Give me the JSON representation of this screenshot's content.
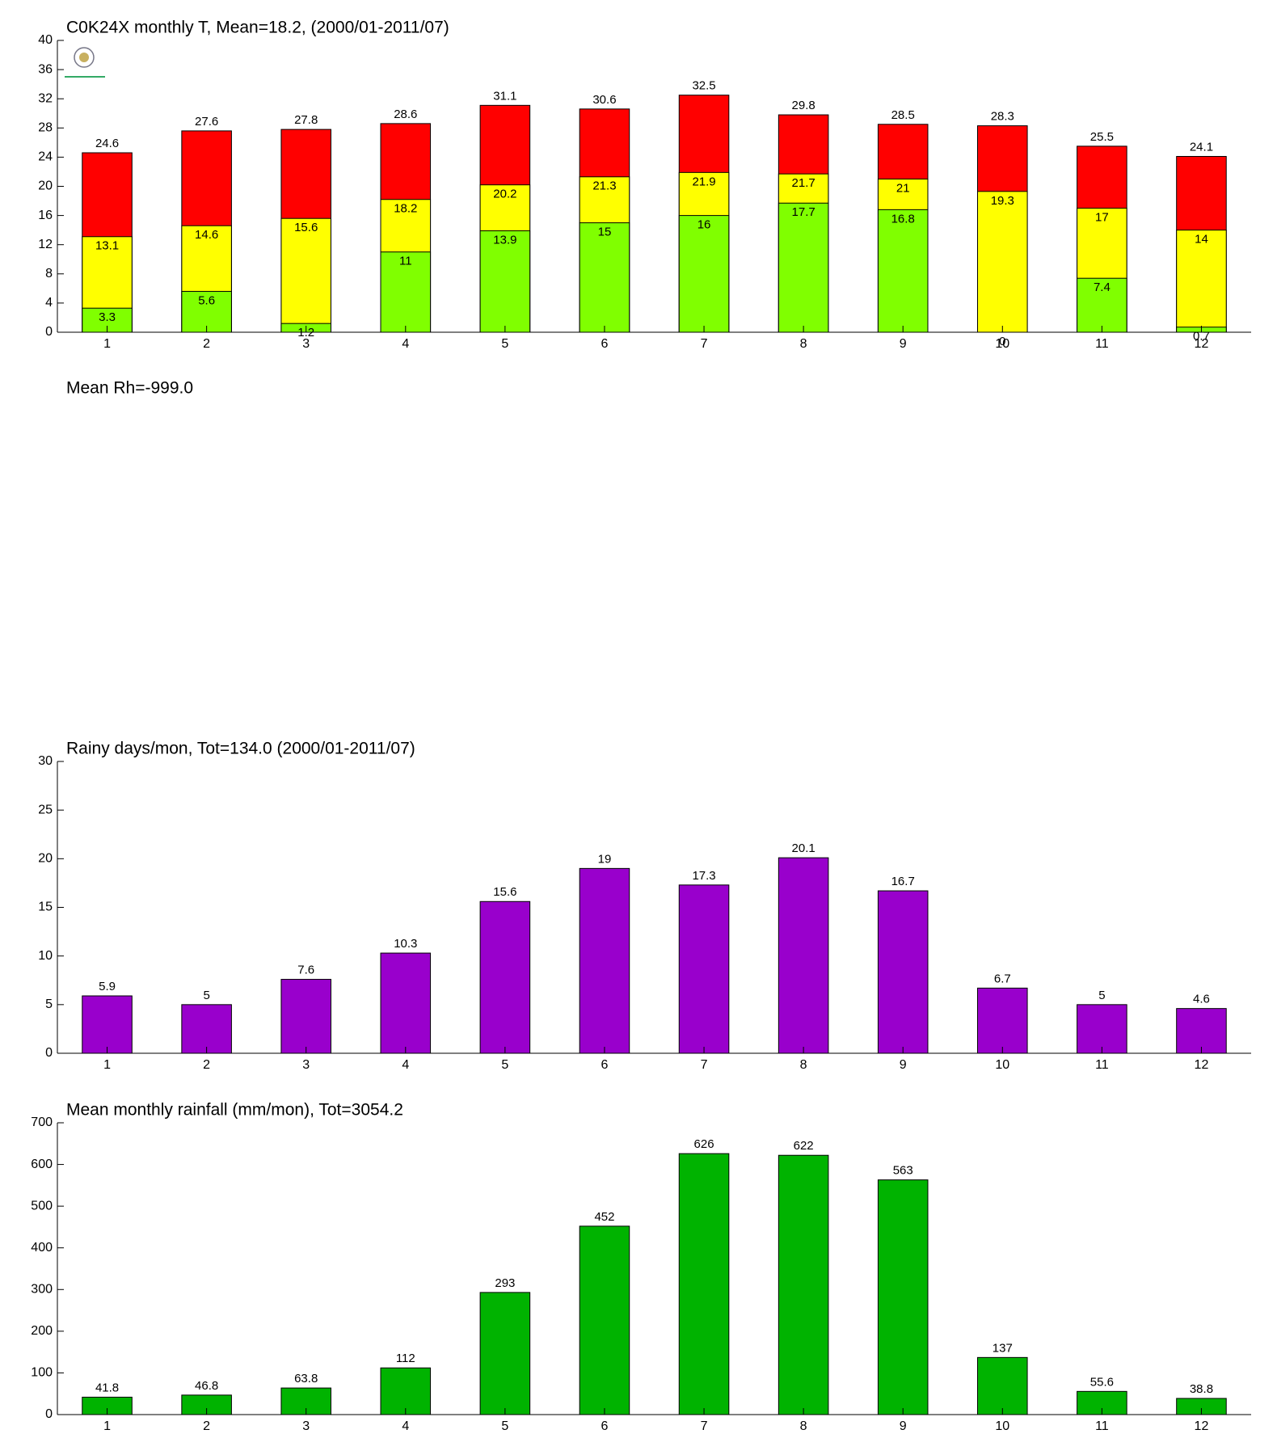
{
  "chart_data": [
    {
      "type": "bar",
      "title": "C0K24X monthly T, Mean=18.2, (2000/01-2011/07)",
      "categories": [
        1,
        2,
        3,
        4,
        5,
        6,
        7,
        8,
        9,
        10,
        11,
        12
      ],
      "series": [
        {
          "color": "#ff0000",
          "values": [
            24.6,
            27.6,
            27.8,
            28.6,
            31.1,
            30.6,
            32.5,
            29.8,
            28.5,
            28.3,
            25.5,
            24.1
          ]
        },
        {
          "color": "#ffff00",
          "values": [
            13.1,
            14.6,
            15.6,
            18.2,
            20.2,
            21.3,
            21.9,
            21.7,
            21,
            19.3,
            17,
            14
          ]
        },
        {
          "color": "#80ff00",
          "values": [
            3.3,
            5.6,
            1.2,
            11,
            13.9,
            15,
            16,
            17.7,
            16.8,
            0,
            7.4,
            0.7
          ]
        }
      ],
      "ylim": [
        0,
        40
      ],
      "yticks": [
        0,
        4,
        8,
        12,
        16,
        20,
        24,
        28,
        32,
        36,
        40
      ]
    },
    {
      "type": "empty",
      "title": "Mean Rh=-999.0"
    },
    {
      "type": "bar",
      "title": "Rainy days/mon, Tot=134.0 (2000/01-2011/07)",
      "categories": [
        1,
        2,
        3,
        4,
        5,
        6,
        7,
        8,
        9,
        10,
        11,
        12
      ],
      "series": [
        {
          "color": "#9900cc",
          "values": [
            5.9,
            5,
            7.6,
            10.3,
            15.6,
            19,
            17.3,
            20.1,
            16.7,
            6.7,
            5,
            4.6
          ]
        }
      ],
      "ylim": [
        0,
        30
      ],
      "yticks": [
        0,
        5,
        10,
        15,
        20,
        25,
        30
      ]
    },
    {
      "type": "bar",
      "title": "Mean monthly rainfall (mm/mon), Tot=3054.2",
      "categories": [
        1,
        2,
        3,
        4,
        5,
        6,
        7,
        8,
        9,
        10,
        11,
        12
      ],
      "series": [
        {
          "color": "#00b300",
          "values": [
            41.8,
            46.8,
            63.8,
            112,
            293,
            452,
            626,
            622,
            563,
            137,
            55.6,
            38.8
          ]
        }
      ],
      "ylim": [
        0,
        700
      ],
      "yticks": [
        0,
        100,
        200,
        300,
        400,
        500,
        600,
        700
      ]
    }
  ]
}
